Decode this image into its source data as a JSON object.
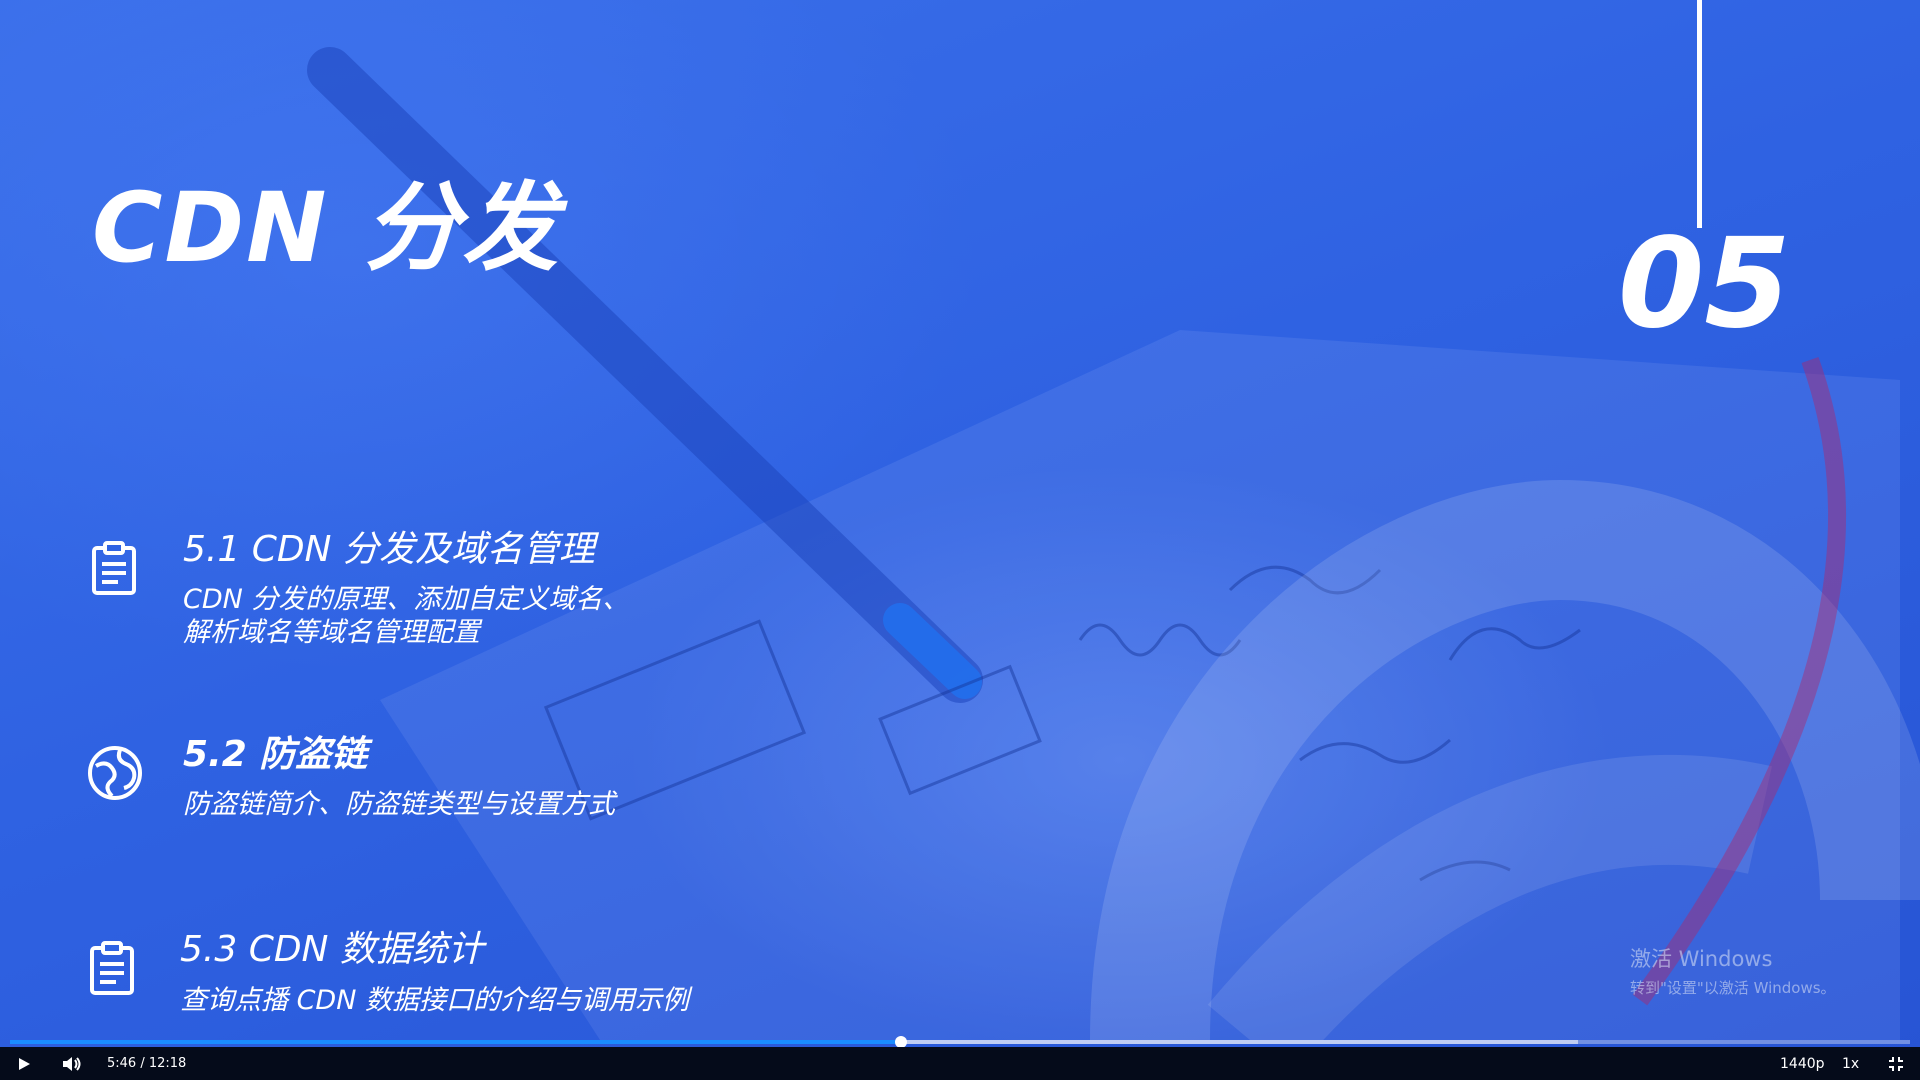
{
  "slide": {
    "title": "CDN 分发",
    "chapter_number": "05",
    "sections": [
      {
        "heading": "5.1 CDN 分发及域名管理",
        "desc_line1": "CDN 分发的原理、添加自定义域名、",
        "desc_line2": "解析域名等域名管理配置",
        "icon": "clipboard-icon"
      },
      {
        "heading": "5.2 防盗链",
        "desc_line1": "防盗链简介、防盗链类型与设置方式",
        "icon": "globe-icon"
      },
      {
        "heading": "5.3 CDN 数据统计",
        "desc_line1": "查询点播 CDN 数据接口的介绍与调用示例",
        "icon": "clipboard-icon"
      }
    ]
  },
  "watermark": {
    "line1": "激活 Windows",
    "line2": "转到\"设置\"以激活 Windows。"
  },
  "player": {
    "play_icon": "play-icon",
    "volume_icon": "volume-icon",
    "time_display": "5:46 / 12:18",
    "progress_fraction": 0.469,
    "buffered_fraction": 0.825,
    "quality": "1440p",
    "speed": "1x",
    "fullscreen_icon": "exit-fullscreen-icon"
  },
  "colors": {
    "background": "#2f63e3",
    "progress": "#1a8cff",
    "controls_bar": "#050b1a"
  }
}
